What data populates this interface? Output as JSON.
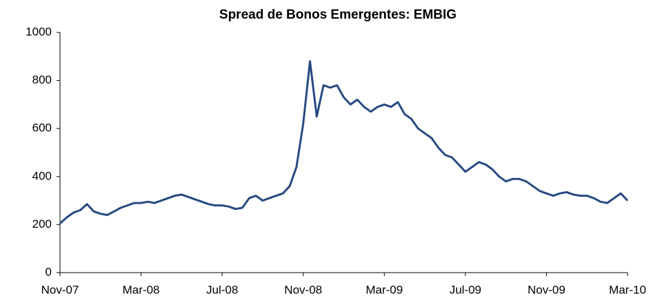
{
  "chart_data": {
    "type": "line",
    "title": "Spread de Bonos Emergentes:  EMBIG",
    "categories": [
      "Nov-07",
      null,
      null,
      null,
      null,
      null,
      null,
      null,
      null,
      null,
      null,
      null,
      "Mar-08",
      null,
      null,
      null,
      null,
      null,
      null,
      null,
      null,
      null,
      null,
      null,
      "Jul-08",
      null,
      null,
      null,
      null,
      null,
      null,
      null,
      null,
      null,
      null,
      null,
      "Nov-08",
      null,
      null,
      null,
      null,
      null,
      null,
      null,
      null,
      null,
      null,
      null,
      "Mar-09",
      null,
      null,
      null,
      null,
      null,
      null,
      null,
      null,
      null,
      null,
      null,
      "Jul-09",
      null,
      null,
      null,
      null,
      null,
      null,
      null,
      null,
      null,
      null,
      null,
      "Nov-09",
      null,
      null,
      null,
      null,
      null,
      null,
      null,
      null,
      null,
      null,
      null,
      "Mar-10"
    ],
    "values": [
      205,
      230,
      250,
      260,
      285,
      255,
      245,
      240,
      255,
      270,
      280,
      290,
      290,
      295,
      290,
      300,
      310,
      320,
      325,
      315,
      305,
      295,
      285,
      280,
      280,
      275,
      265,
      270,
      310,
      320,
      300,
      310,
      320,
      330,
      360,
      440,
      620,
      880,
      650,
      780,
      770,
      780,
      730,
      700,
      720,
      690,
      670,
      690,
      700,
      690,
      710,
      660,
      640,
      600,
      580,
      560,
      520,
      490,
      480,
      450,
      420,
      440,
      460,
      450,
      430,
      400,
      380,
      390,
      390,
      380,
      360,
      340,
      330,
      320,
      330,
      335,
      325,
      320,
      320,
      310,
      295,
      290,
      310,
      330,
      300
    ],
    "color": "#264a80",
    "ylim": [
      0,
      1000
    ],
    "yticks": [
      0,
      200,
      400,
      600,
      800,
      1000
    ],
    "grid": false
  }
}
